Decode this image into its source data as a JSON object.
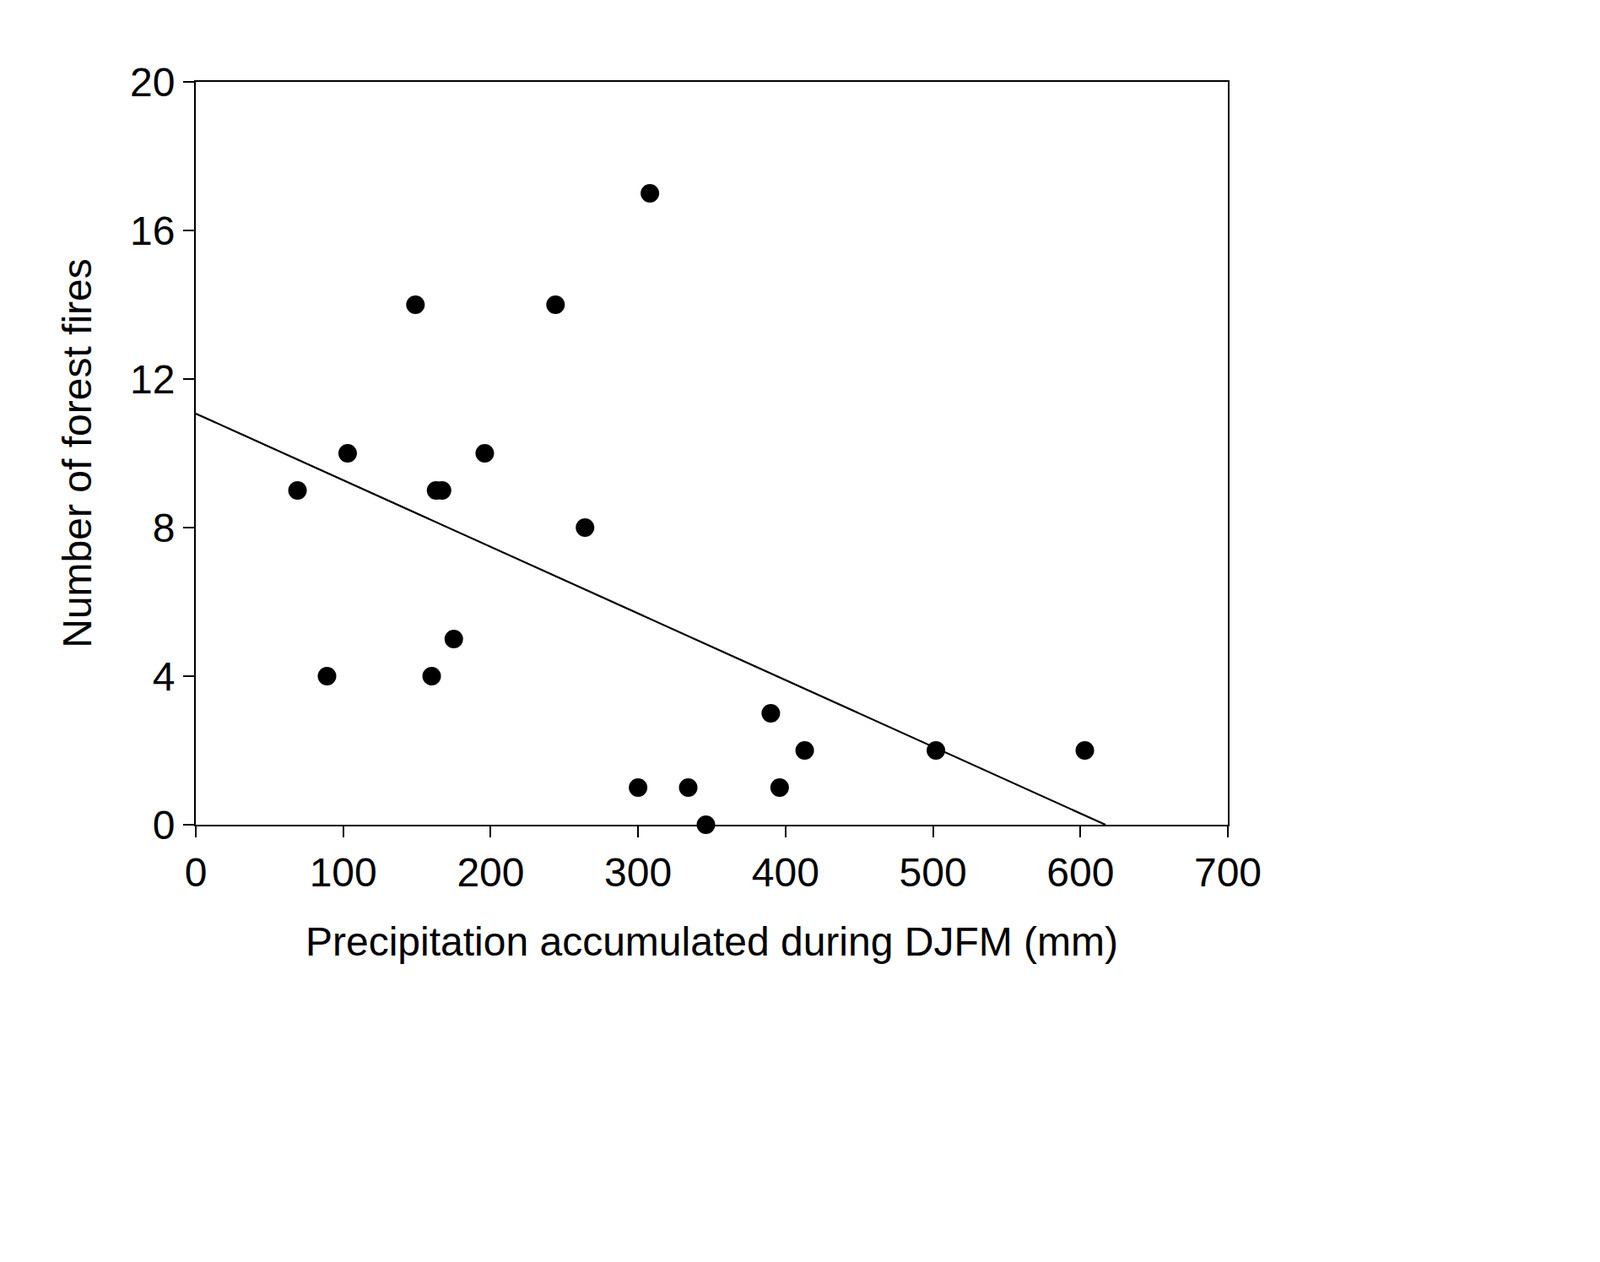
{
  "chart_data": {
    "type": "scatter",
    "x_label": "Precipitation accumulated during DJFM (mm)",
    "y_label": "Number of forest fires",
    "xlim": [
      0,
      700
    ],
    "xticks": [
      0,
      100,
      200,
      300,
      400,
      500,
      600,
      700
    ],
    "ylim": [
      0,
      20
    ],
    "yticks": [
      0,
      4,
      8,
      12,
      16,
      20
    ],
    "grid": false,
    "series": [
      {
        "type": "scatter",
        "color": "#000000",
        "marker": "circle",
        "x": [
          69,
          89,
          103,
          149,
          160,
          163,
          167,
          175,
          196,
          244,
          264,
          300,
          308,
          334,
          346,
          390,
          396,
          413,
          502,
          603
        ],
        "values": [
          9,
          4,
          10,
          14,
          4,
          9,
          9,
          5,
          10,
          14,
          8,
          1,
          17,
          1,
          0,
          3,
          1,
          2,
          2,
          2
        ]
      },
      {
        "type": "line",
        "color": "#000000",
        "line_style": "solid",
        "x": [
          0,
          617
        ],
        "values": [
          11.07,
          0
        ]
      }
    ]
  }
}
